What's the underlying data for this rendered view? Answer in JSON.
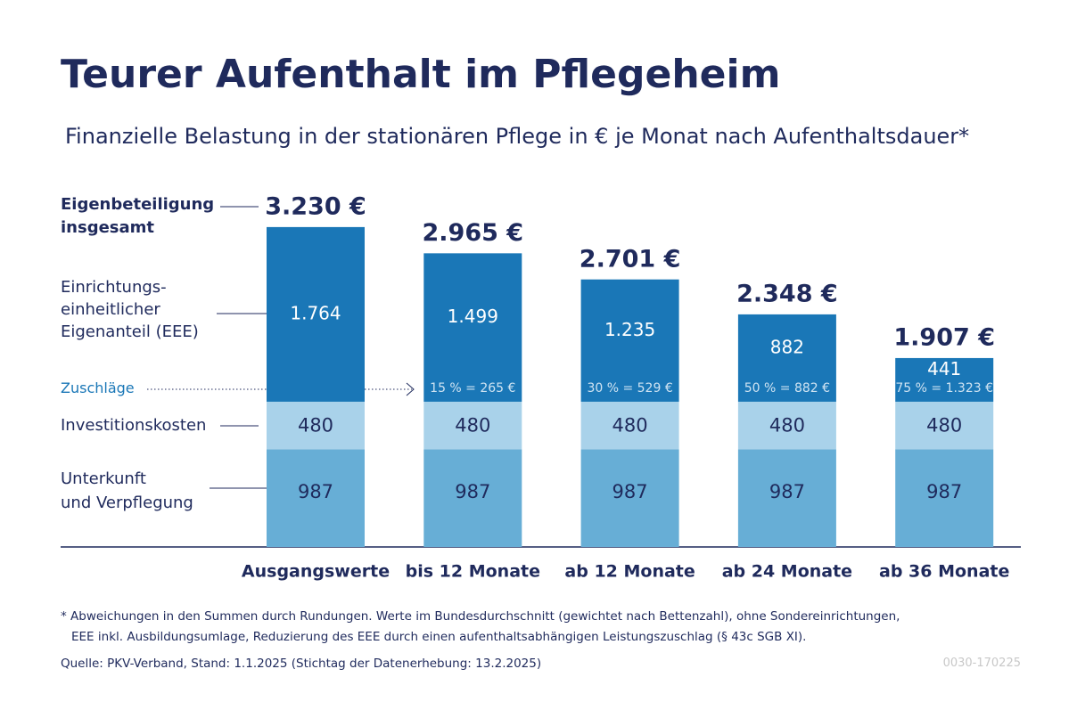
{
  "chart_data": {
    "type": "stacked_bar",
    "title": "Teurer Aufenthalt im Pflegeheim",
    "subtitle": "Finanzielle Belastung in der stationären Pflege in € je Monat nach Aufenthaltsdauer*",
    "categories": [
      "Ausgangswerte",
      "bis 12 Monate",
      "ab 12 Monate",
      "ab 24 Monate",
      "ab 36 Monate"
    ],
    "series": [
      {
        "name": "Unterkunft\nund Verpflegung",
        "color": "#67aed6",
        "values": [
          987,
          987,
          987,
          987,
          987
        ]
      },
      {
        "name": "Investitionskosten",
        "color": "#a9d2ea",
        "values": [
          480,
          480,
          480,
          480,
          480
        ]
      },
      {
        "name": "Einrichtungs-\neinheitlicher\nEigenanteil (EEE)",
        "color": "#1a77b7",
        "values": [
          1764,
          1499,
          1235,
          882,
          441
        ],
        "value_labels": [
          "1.764",
          "1.499",
          "1.235",
          "882",
          "441"
        ]
      }
    ],
    "surcharges": {
      "name": "Zuschläge",
      "color": "#1a77b7",
      "values": [
        null,
        265,
        529,
        882,
        1323
      ],
      "value_labels": [
        null,
        "15 % = 265 €",
        "30 % = 529 €",
        "50 % = 882 €",
        "75 % = 1.323 €"
      ]
    },
    "totals": {
      "name": "Eigenbeteiligung\ninsgesamt",
      "values": [
        3230,
        2965,
        2701,
        2348,
        1907
      ],
      "value_labels": [
        "3.230 €",
        "2.965 €",
        "2.701 €",
        "2.348 €",
        "1.907 €"
      ]
    },
    "footnote": [
      "* Abweichungen in den Summen durch Rundungen. Werte im Bundesdurchschnitt (gewichtet nach Bettenzahl), ohne Sondereinrichtungen,",
      "EEE inkl. Ausbildungsumlage, Reduzierung des EEE durch einen aufenthaltsabhängigen Leistungszuschlag (§ 43c SGB XI)."
    ],
    "source": "Quelle: PKV-Verband, Stand: 1.1.2025 (Stichtag der Datenerhebung: 13.2.2025)",
    "code": "0030-170225"
  }
}
